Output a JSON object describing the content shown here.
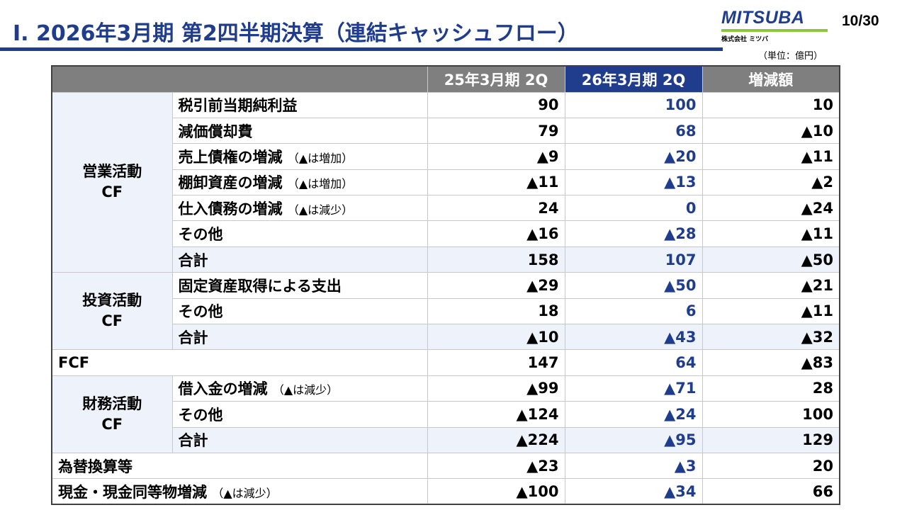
{
  "header": {
    "title": "Ⅰ. 2026年3月期 第2四半期決算（連結キャッシュフロー）",
    "page": "10/30",
    "unit": "（単位：億円）",
    "logo": "MITSUBA",
    "logo_sub": "株式会社 ミツバ"
  },
  "colors": {
    "brand": "#1f3d8c",
    "logo_bar": "#8dc63f",
    "header_grey": "#7f7f7f",
    "row_tint": "#eef2fa"
  },
  "table": {
    "columns": [
      "25年3月期 2Q",
      "26年3月期 2Q",
      "増減額"
    ],
    "groups": [
      {
        "label": "営業活動\nCF",
        "rows": [
          {
            "item": "税引前当期純利益",
            "note": "",
            "v": [
              "90",
              "100",
              "10"
            ]
          },
          {
            "item": "減価償却費",
            "note": "",
            "v": [
              "79",
              "68",
              "▲10"
            ]
          },
          {
            "item": "売上債権の増減",
            "note": "（▲は増加）",
            "v": [
              "▲9",
              "▲20",
              "▲11"
            ]
          },
          {
            "item": "棚卸資産の増減",
            "note": "（▲は増加）",
            "v": [
              "▲11",
              "▲13",
              "▲2"
            ]
          },
          {
            "item": "仕入債務の増減",
            "note": "（▲は減少）",
            "v": [
              "24",
              "0",
              "▲24"
            ]
          },
          {
            "item": "その他",
            "note": "",
            "v": [
              "▲16",
              "▲28",
              "▲11"
            ]
          },
          {
            "item": "合計",
            "note": "",
            "v": [
              "158",
              "107",
              "▲50"
            ],
            "total": true
          }
        ]
      },
      {
        "label": "投資活動\nCF",
        "rows": [
          {
            "item": "固定資産取得による支出",
            "note": "",
            "v": [
              "▲29",
              "▲50",
              "▲21"
            ]
          },
          {
            "item": "その他",
            "note": "",
            "v": [
              "18",
              "6",
              "▲11"
            ]
          },
          {
            "item": "合計",
            "note": "",
            "v": [
              "▲10",
              "▲43",
              "▲32"
            ],
            "total": true
          }
        ]
      },
      {
        "single": true,
        "item": "FCF",
        "note": "",
        "v": [
          "147",
          "64",
          "▲83"
        ]
      },
      {
        "label": "財務活動\nCF",
        "rows": [
          {
            "item": "借入金の増減",
            "note": "（▲は減少）",
            "v": [
              "▲99",
              "▲71",
              "28"
            ]
          },
          {
            "item": "その他",
            "note": "",
            "v": [
              "▲124",
              "▲24",
              "100"
            ]
          },
          {
            "item": "合計",
            "note": "",
            "v": [
              "▲224",
              "▲95",
              "129"
            ],
            "total": true
          }
        ]
      },
      {
        "single": true,
        "item": "為替換算等",
        "note": "",
        "v": [
          "▲23",
          "▲3",
          "20"
        ]
      },
      {
        "single": true,
        "item": "現金・現金同等物増減",
        "note": "（▲は減少）",
        "v": [
          "▲100",
          "▲34",
          "66"
        ]
      }
    ]
  }
}
